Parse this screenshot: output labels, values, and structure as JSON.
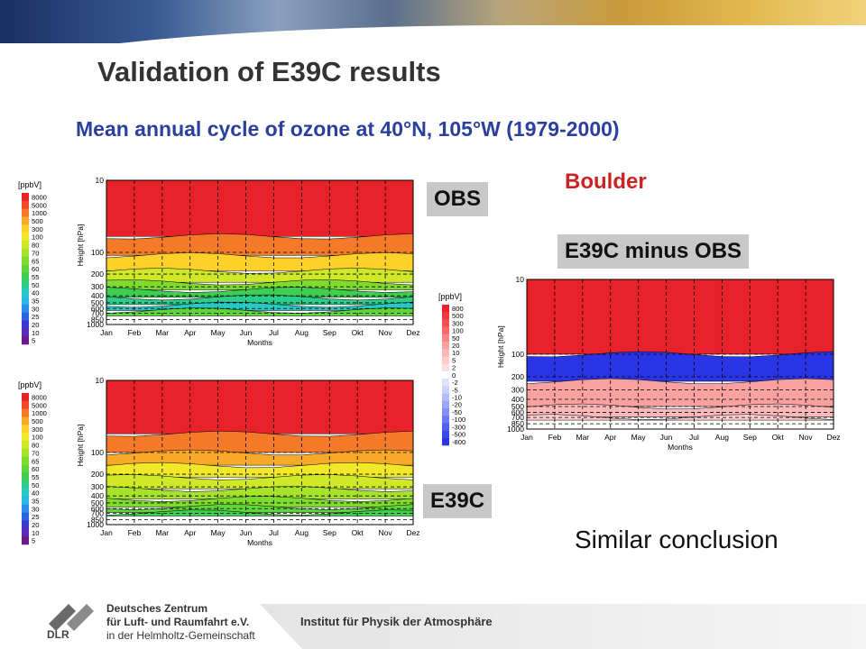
{
  "header": {
    "title": "Validation of E39C results",
    "subtitle": "Mean annual cycle of ozone at 40°N, 105°W (1979-2000)",
    "location": "Boulder",
    "label_obs": "OBS",
    "label_diff": "E39C minus OBS",
    "label_model": "E39C",
    "conclusion": "Similar conclusion"
  },
  "footer": {
    "org_line1": "Deutsches Zentrum",
    "org_line2": "für Luft- und Raumfahrt e.V.",
    "org_line3": "in der Helmholtz-Gemeinschaft",
    "logo_text": "DLR",
    "institute": "Institut für Physik der Atmosphäre"
  },
  "colors": {
    "title": "#333333",
    "subtitle": "#2a3f9e",
    "location": "#cc2222",
    "tag_bg": "#c8c8c8"
  },
  "chart_data": [
    {
      "type": "heatmap",
      "name": "OBS",
      "xlabel": "Months",
      "ylabel": "Height [hPa]",
      "x": [
        "Jan",
        "Feb",
        "Mar",
        "Apr",
        "May",
        "Jun",
        "Jul",
        "Aug",
        "Sep",
        "Okt",
        "Nov",
        "Dez"
      ],
      "y_ticks": [
        10,
        100,
        200,
        300,
        400,
        500,
        600,
        700,
        850,
        1000
      ],
      "colorbar_unit": "[ppbV]",
      "colorbar_levels": [
        "8000",
        "5000",
        "1000",
        "500",
        "300",
        "100",
        "80",
        "70",
        "65",
        "60",
        "55",
        "50",
        "40",
        "35",
        "30",
        "25",
        "20",
        "10",
        "5"
      ],
      "colorbar_colors": [
        "#e8222a",
        "#ef4a2a",
        "#f47a2a",
        "#f9a92a",
        "#fdd12a",
        "#f2e82a",
        "#cfe82a",
        "#a6e32a",
        "#7fdc2e",
        "#5fd53a",
        "#3fce52",
        "#2ccc8a",
        "#2ac8c4",
        "#2ab6e8",
        "#2a8ee8",
        "#2a62e0",
        "#3a3ad0",
        "#5a2ab8",
        "#6a1a8a"
      ],
      "bands": [
        {
          "p": 10,
          "color": "#e8222a"
        },
        {
          "p": 60,
          "color": "#f47a2a"
        },
        {
          "p": 110,
          "color": "#fdd12a"
        },
        {
          "p": 180,
          "color": "#cfe82a"
        },
        {
          "p": 260,
          "color": "#7fdc2e"
        },
        {
          "p": 330,
          "color": "#3fce52"
        },
        {
          "p": 420,
          "color": "#2ccc8a"
        },
        {
          "p": 530,
          "color": "#2ac8c4"
        },
        {
          "p": 640,
          "color": "#5fd53a"
        }
      ],
      "data_bottom_p": 760
    },
    {
      "type": "heatmap",
      "name": "E39C",
      "xlabel": "Months",
      "ylabel": "Height [hPa]",
      "x": [
        "Jan",
        "Feb",
        "Mar",
        "Apr",
        "May",
        "Jun",
        "Jul",
        "Aug",
        "Sep",
        "Okt",
        "Nov",
        "Dez"
      ],
      "y_ticks": [
        10,
        100,
        200,
        300,
        400,
        500,
        600,
        700,
        850,
        1000
      ],
      "colorbar_unit": "[ppbV]",
      "colorbar_levels": [
        "8000",
        "5000",
        "1000",
        "500",
        "300",
        "100",
        "80",
        "70",
        "65",
        "60",
        "55",
        "50",
        "40",
        "35",
        "30",
        "25",
        "20",
        "10",
        "5"
      ],
      "colorbar_colors": [
        "#e8222a",
        "#ef4a2a",
        "#f47a2a",
        "#f9a92a",
        "#fdd12a",
        "#f2e82a",
        "#cfe82a",
        "#a6e32a",
        "#7fdc2e",
        "#5fd53a",
        "#3fce52",
        "#2ccc8a",
        "#2ac8c4",
        "#2ab6e8",
        "#2a8ee8",
        "#2a62e0",
        "#3a3ad0",
        "#5a2ab8",
        "#6a1a8a"
      ],
      "bands": [
        {
          "p": 10,
          "color": "#e8222a"
        },
        {
          "p": 55,
          "color": "#f47a2a"
        },
        {
          "p": 100,
          "color": "#f9a92a"
        },
        {
          "p": 150,
          "color": "#f2e82a"
        },
        {
          "p": 220,
          "color": "#cfe82a"
        },
        {
          "p": 320,
          "color": "#a6e32a"
        },
        {
          "p": 440,
          "color": "#7fdc2e"
        },
        {
          "p": 570,
          "color": "#5fd53a"
        },
        {
          "p": 680,
          "color": "#3fce52"
        }
      ],
      "data_bottom_p": 760
    },
    {
      "type": "heatmap",
      "name": "E39C minus OBS",
      "xlabel": "Months",
      "ylabel": "Height [hPa]",
      "x": [
        "Jan",
        "Feb",
        "Mar",
        "Apr",
        "May",
        "Jun",
        "Jul",
        "Aug",
        "Sep",
        "Okt",
        "Nov",
        "Dez"
      ],
      "y_ticks": [
        10,
        100,
        200,
        300,
        400,
        500,
        600,
        700,
        850,
        1000
      ],
      "colorbar_unit": "[ppbV]",
      "colorbar_levels": [
        "800",
        "500",
        "300",
        "100",
        "50",
        "20",
        "10",
        "5",
        "2",
        "0",
        "-2",
        "-5",
        "-10",
        "-20",
        "-50",
        "-100",
        "-300",
        "-500",
        "-800"
      ],
      "colorbar_colors": [
        "#e8222a",
        "#ec3a3a",
        "#f05050",
        "#f46a6a",
        "#f78686",
        "#f9a0a0",
        "#fbb8b8",
        "#fdcccc",
        "#fee0e0",
        "#ffffff",
        "#e0e4fe",
        "#ccd2fc",
        "#b4bcfa",
        "#9ca6f8",
        "#8490f6",
        "#6a78f2",
        "#5060ee",
        "#3a4aea",
        "#2a36e6"
      ],
      "bands": [
        {
          "p": 10,
          "color": "#e8222a"
        },
        {
          "p": 100,
          "color": "#2a36e6"
        },
        {
          "p": 230,
          "color": "#f9a0a0"
        },
        {
          "p": 500,
          "color": "#fbb8b8"
        },
        {
          "p": 690,
          "color": "#fdcccc"
        }
      ],
      "data_bottom_p": 760
    }
  ]
}
